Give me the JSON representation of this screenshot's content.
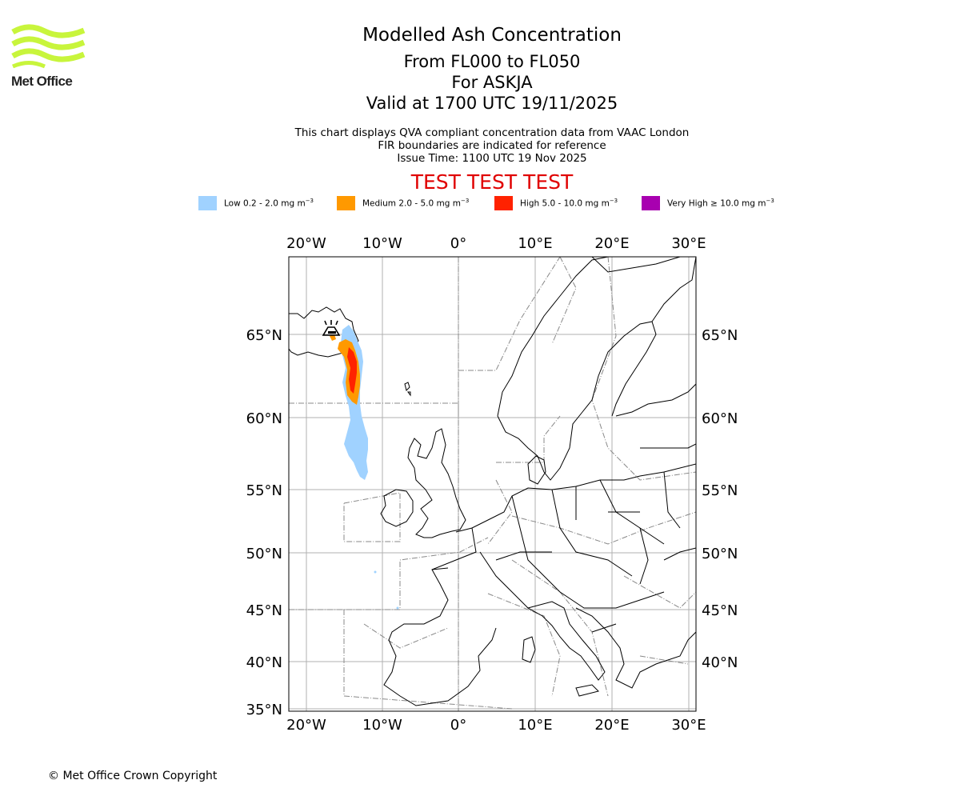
{
  "logo": {
    "text": "Met Office",
    "color": "#c8f53c"
  },
  "title": {
    "main": "Modelled Ash Concentration",
    "levels": "From FL000 to FL050",
    "volcano": "For ASKJA",
    "valid": "Valid at 1700 UTC 19/11/2025"
  },
  "subtitle": {
    "line1": "This chart displays QVA compliant concentration data from VAAC London",
    "line2": "FIR boundaries are indicated for reference",
    "line3": "Issue Time: 1100 UTC 19 Nov 2025"
  },
  "test_banner": "TEST TEST TEST",
  "legend": [
    {
      "key": "low",
      "label": "Low 0.2 - 2.0 mg m",
      "color": "#a0d2ff"
    },
    {
      "key": "medium",
      "label": "Medium 2.0 - 5.0 mg m",
      "color": "#ff9900"
    },
    {
      "key": "high",
      "label": "High 5.0 - 10.0 mg m",
      "color": "#ff2200"
    },
    {
      "key": "very-high",
      "label": "Very High ≥ 10.0 mg m",
      "color": "#a800b0"
    }
  ],
  "units_exponent": "−3",
  "map": {
    "lon_labels": [
      "20°W",
      "10°W",
      "0°",
      "10°E",
      "20°E",
      "30°E"
    ],
    "lat_labels": [
      "65°N",
      "60°N",
      "55°N",
      "50°N",
      "45°N",
      "40°N",
      "35°N"
    ]
  },
  "copyright": "© Met Office Crown Copyright"
}
